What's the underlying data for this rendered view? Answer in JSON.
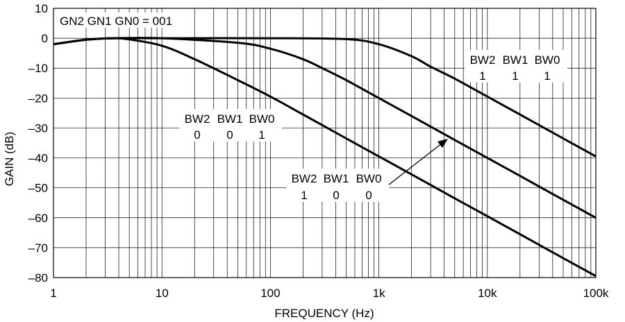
{
  "chart_data": {
    "type": "line",
    "xlabel": "FREQUENCY (Hz)",
    "ylabel": "GAIN (dB)",
    "x_scale": "log",
    "xlim": [
      1,
      100000
    ],
    "ylim": [
      -80,
      10
    ],
    "grid": true,
    "x_ticks": [
      {
        "value": 1,
        "label": "1"
      },
      {
        "value": 10,
        "label": "10"
      },
      {
        "value": 100,
        "label": "100"
      },
      {
        "value": 1000,
        "label": "1k"
      },
      {
        "value": 10000,
        "label": "10k"
      },
      {
        "value": 100000,
        "label": "100k"
      }
    ],
    "y_ticks": [
      {
        "value": 10,
        "label": "10"
      },
      {
        "value": 0,
        "label": "0"
      },
      {
        "value": -10,
        "label": "–10"
      },
      {
        "value": -20,
        "label": "–20"
      },
      {
        "value": -30,
        "label": "–30"
      },
      {
        "value": -40,
        "label": "–40"
      },
      {
        "value": -50,
        "label": "–50"
      },
      {
        "value": -60,
        "label": "–60"
      },
      {
        "value": -70,
        "label": "–70"
      },
      {
        "value": -80,
        "label": "–80"
      }
    ],
    "series": [
      {
        "x": [
          1,
          2,
          3.5,
          5,
          10,
          20,
          50,
          100,
          200,
          500,
          1000,
          2000,
          5000,
          10000,
          20000,
          50000,
          100000
        ],
        "y": [
          -2,
          -0.5,
          0,
          -0.4,
          -2.5,
          -7,
          -14,
          -19.5,
          -25.5,
          -33.5,
          -39.5,
          -45.5,
          -53.5,
          -59.5,
          -65.5,
          -73.5,
          -79.5
        ]
      },
      {
        "x": [
          1,
          2,
          3.5,
          10,
          50,
          100,
          200,
          300,
          500,
          1000,
          2000,
          5000,
          10000,
          20000,
          50000,
          100000
        ],
        "y": [
          -2,
          -0.5,
          0,
          0,
          -1.5,
          -3.5,
          -7,
          -10,
          -14,
          -20,
          -26,
          -34,
          -40,
          -46,
          -54,
          -60
        ]
      },
      {
        "x": [
          1,
          2,
          3.5,
          10,
          100,
          500,
          1000,
          2000,
          3000,
          5000,
          10000,
          20000,
          50000,
          100000
        ],
        "y": [
          -2,
          -0.5,
          0,
          0,
          0,
          -0.3,
          -2,
          -6,
          -9.5,
          -13.5,
          -19.5,
          -25.5,
          -33.5,
          -39.5
        ]
      }
    ],
    "annotations": [
      {
        "text": "GN2 GN1 GN0 = 001"
      },
      {
        "row1": [
          "BW2",
          "BW1",
          "BW0"
        ],
        "row2": [
          "0",
          "0",
          "1"
        ]
      },
      {
        "row1": [
          "BW2",
          "BW1",
          "BW0"
        ],
        "row2": [
          "1",
          "0",
          "0"
        ]
      },
      {
        "row1": [
          "BW2",
          "BW1",
          "BW0"
        ],
        "row2": [
          "1",
          "1",
          "1"
        ]
      }
    ]
  }
}
